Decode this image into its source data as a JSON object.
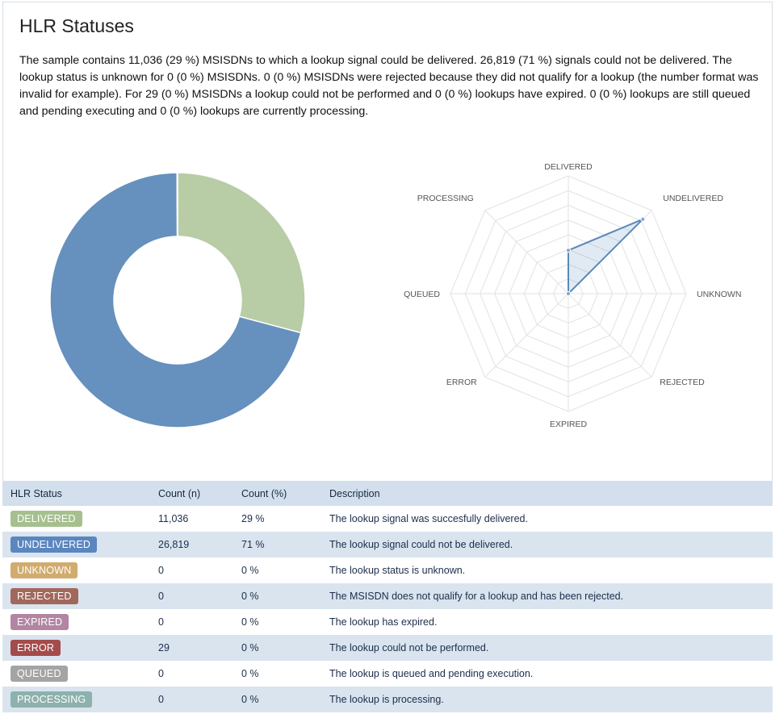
{
  "title": "HLR Statuses",
  "summary": "The sample contains 11,036 (29 %) MSISDNs to which a lookup signal could be delivered. 26,819 (71 %) signals could not be delivered. The lookup status is unknown for 0 (0 %) MSISDNs. 0 (0 %) MSISDNs were rejected because they did not qualify for a lookup (the number format was invalid for example). For 29 (0 %) MSISDNs a lookup could not be performed and 0 (0 %) lookups have expired. 0 (0 %) lookups are still queued and pending executing and 0 (0 %) lookups are currently processing.",
  "chart_data": [
    {
      "type": "pie",
      "variant": "donut",
      "categories": [
        "DELIVERED",
        "UNDELIVERED",
        "UNKNOWN",
        "REJECTED",
        "EXPIRED",
        "ERROR",
        "QUEUED",
        "PROCESSING"
      ],
      "values": [
        11036,
        26819,
        0,
        0,
        0,
        29,
        0,
        0
      ],
      "colors": [
        "#b8cca6",
        "#6690bd",
        "#d4b27a",
        "#a86a5e",
        "#b88aa6",
        "#a84e4e",
        "#a8a8a8",
        "#8fb4b0"
      ]
    },
    {
      "type": "radar",
      "categories": [
        "DELIVERED",
        "UNDELIVERED",
        "UNKNOWN",
        "REJECTED",
        "EXPIRED",
        "ERROR",
        "QUEUED",
        "PROCESSING"
      ],
      "values": [
        11036,
        26819,
        0,
        0,
        0,
        29,
        0,
        0
      ],
      "rmax": 30000,
      "rings": 8,
      "color": "#5b88b8"
    }
  ],
  "table": {
    "headers": [
      "HLR Status",
      "Count (n)",
      "Count (%)",
      "Description"
    ],
    "rows": [
      {
        "status": "DELIVERED",
        "count": "11,036",
        "pct": "29 %",
        "description": "The lookup signal was succesfully delivered.",
        "color": "#a6bf8f"
      },
      {
        "status": "UNDELIVERED",
        "count": "26,819",
        "pct": "71 %",
        "description": "The lookup signal could not be delivered.",
        "color": "#5b86bf"
      },
      {
        "status": "UNKNOWN",
        "count": "0",
        "pct": "0 %",
        "description": "The lookup status is unknown.",
        "color": "#d1ac6e"
      },
      {
        "status": "REJECTED",
        "count": "0",
        "pct": "0 %",
        "description": "The MSISDN does not qualify for a lookup and has been rejected.",
        "color": "#a2675c"
      },
      {
        "status": "EXPIRED",
        "count": "0",
        "pct": "0 %",
        "description": "The lookup has expired.",
        "color": "#b286a2"
      },
      {
        "status": "ERROR",
        "count": "29",
        "pct": "0 %",
        "description": "The lookup could not be performed.",
        "color": "#a44b4b"
      },
      {
        "status": "QUEUED",
        "count": "0",
        "pct": "0 %",
        "description": "The lookup is queued and pending execution.",
        "color": "#a4a4a4"
      },
      {
        "status": "PROCESSING",
        "count": "0",
        "pct": "0 %",
        "description": "The lookup is processing.",
        "color": "#8db1ad"
      }
    ]
  }
}
